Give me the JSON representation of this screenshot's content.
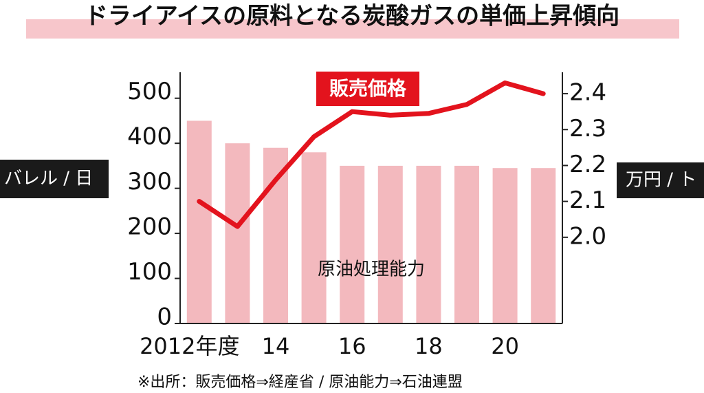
{
  "chart_data": {
    "type": "bar-line",
    "title": "ドライアイスの原料となる炭酸ガスの単価上昇傾向",
    "y_label": "バレル / 日",
    "y2_label": "万円 / ト",
    "footnote": "※出所：販売価格⇒経産省 / 原油能力⇒石油連盟",
    "categories": [
      "2012年度",
      null,
      "14",
      null,
      "16",
      null,
      "18",
      null,
      "20",
      null
    ],
    "series": [
      {
        "name": "原油処理能力",
        "type": "bar",
        "color": "#f3b9be",
        "values": [
          450,
          400,
          390,
          380,
          350,
          350,
          350,
          350,
          345,
          345
        ]
      },
      {
        "name": "販売価格",
        "type": "line",
        "axis": "y2",
        "color": "#e3131d",
        "values": [
          2.1,
          2.03,
          2.16,
          2.28,
          2.35,
          2.34,
          2.345,
          2.37,
          2.43,
          2.4
        ]
      }
    ],
    "ylim": [
      0,
      550
    ],
    "yticks": [
      0,
      100,
      200,
      300,
      400,
      500
    ],
    "y2lim": [
      1.76,
      2.45
    ],
    "y2ticks": [
      {
        "value": 2.0,
        "label": "2.0"
      },
      2.1,
      2.2,
      2.3,
      2.4
    ]
  }
}
